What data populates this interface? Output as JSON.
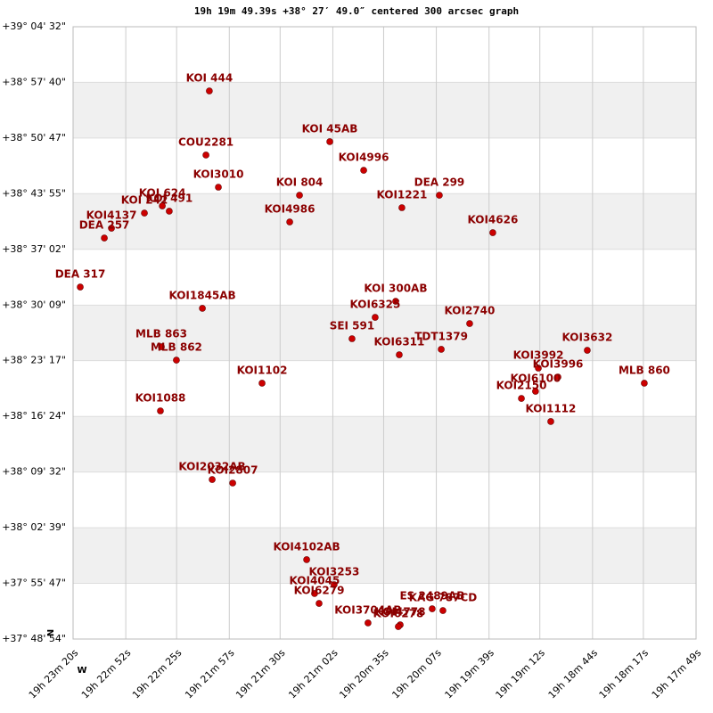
{
  "chart_data": {
    "type": "scatter",
    "title": "19h 19m 49.39s +38° 27′ 49.0″ centered 300 arcsec graph",
    "north_label": "N",
    "west_label": "W",
    "color": "#cc0000",
    "label_color": "#8b0000",
    "grid": true,
    "xlim": [
      69800,
      69469
    ],
    "ylim": [
      136134,
      140672
    ],
    "xticks": [
      {
        "value": 69800,
        "label": "19h 23m 20s"
      },
      {
        "value": 69772,
        "label": "19h 22m 52s"
      },
      {
        "value": 69745,
        "label": "19h 22m 25s"
      },
      {
        "value": 69717,
        "label": "19h 21m 57s"
      },
      {
        "value": 69690,
        "label": "19h 21m 30s"
      },
      {
        "value": 69662,
        "label": "19h 21m 02s"
      },
      {
        "value": 69635,
        "label": "19h 20m 35s"
      },
      {
        "value": 69607,
        "label": "19h 20m 07s"
      },
      {
        "value": 69579,
        "label": "19h 19m 39s"
      },
      {
        "value": 69552,
        "label": "19h 19m 12s"
      },
      {
        "value": 69524,
        "label": "19h 18m 44s"
      },
      {
        "value": 69497,
        "label": "19h 18m 17s"
      },
      {
        "value": 69469,
        "label": "19h 17m 49s"
      }
    ],
    "yticks": [
      {
        "value": 140672,
        "label": "+39° 04' 32\""
      },
      {
        "value": 140260,
        "label": "+38° 57' 40\""
      },
      {
        "value": 139847,
        "label": "+38° 50' 47\""
      },
      {
        "value": 139435,
        "label": "+38° 43' 55\""
      },
      {
        "value": 139022,
        "label": "+38° 37' 02\""
      },
      {
        "value": 138609,
        "label": "+38° 30' 09\""
      },
      {
        "value": 138197,
        "label": "+38° 23' 17\""
      },
      {
        "value": 137784,
        "label": "+38° 16' 24\""
      },
      {
        "value": 137372,
        "label": "+38° 09' 32\""
      },
      {
        "value": 136959,
        "label": "+38° 02' 39\""
      },
      {
        "value": 136547,
        "label": "+37° 55' 47\""
      },
      {
        "value": 136134,
        "label": "+37° 48' 54\""
      }
    ],
    "labels": [
      "KOI 444",
      "KOI  45AB",
      "COU2281",
      "KOI4996",
      "KOI3010",
      "KOI 804",
      "DEA 299",
      "KOI 242",
      "KOI 624",
      "KOI 491",
      "KOI1221",
      "KOI4137",
      "DEA 257",
      "KOI4986",
      "KOI4626",
      "DEA 317",
      "KOI 300AB",
      "KOI1845AB",
      "KOI6325",
      "KOI2740",
      "SEI 591",
      "MLB 863",
      "MLB 862",
      "KOI6311",
      "TDT1379",
      "KOI3632",
      "KOI3992",
      "KOI3996",
      "KOI6100",
      "KOI2150",
      "MLB 860",
      "KOI1102",
      "KOI1088",
      "KOI1112",
      "KOI2032AB",
      "KOI2807",
      "KOI4102AB",
      "KOI3253",
      "KOI4045",
      "KOI6279",
      "ES 2489AB",
      "KAG 787CD",
      "KOI3704AB",
      "KOI4778",
      "KOI6278"
    ],
    "x": [
      69727.6,
      69663.6,
      69729.4,
      69645.6,
      69722.8,
      69679.7,
      69605.4,
      69762.1,
      69752.6,
      69748.9,
      69625.3,
      69779.6,
      69783.4,
      69684.9,
      69577.0,
      69796.2,
      69628.6,
      69731.3,
      69639.5,
      69589.3,
      69651.8,
      69753.1,
      69745.1,
      69626.7,
      69604.4,
      69526.8,
      69552.8,
      69542.4,
      69554.3,
      69561.8,
      69496.5,
      69699.6,
      69753.6,
      69546.2,
      69726.1,
      69715.2,
      69675.9,
      69661.3,
      69671.7,
      69669.3,
      69609.2,
      69603.5,
      69643.3,
      69626.2,
      69627.2
    ],
    "y": [
      140196,
      139820,
      139721,
      139608,
      139483,
      139423,
      139423,
      139291,
      139344,
      139305,
      139331,
      139179,
      139106,
      139225,
      139146,
      138743,
      138637,
      138585,
      138518,
      138472,
      138360,
      138300,
      138201,
      138241,
      138281,
      138274,
      138142,
      138076,
      137970,
      137917,
      138030,
      138030,
      137825,
      137746,
      137316,
      137290,
      136722,
      136537,
      136471,
      136398,
      136358,
      136345,
      136253,
      136239,
      136226
    ]
  }
}
